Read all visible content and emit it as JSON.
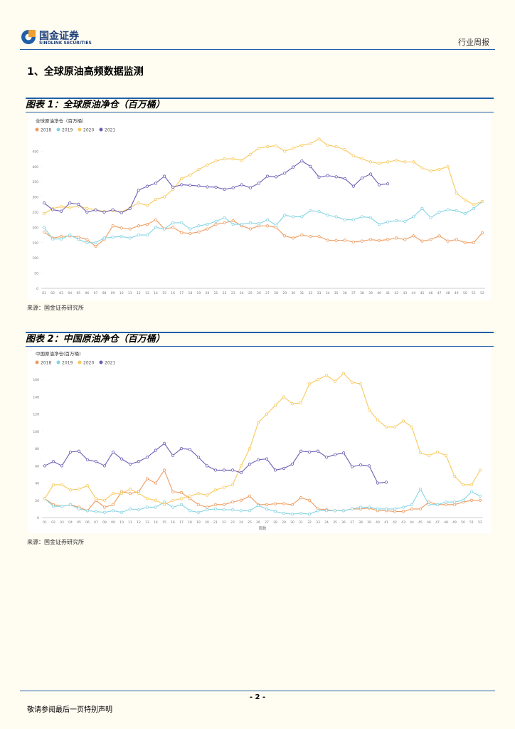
{
  "header": {
    "logo_cn": "国金证券",
    "logo_en": "SINOLINK SECURITIES",
    "report_type": "行业周报"
  },
  "section_title": "1、全球原油高频数据监测",
  "figures": [
    {
      "caption": "图表 1：全球原油净仓（百万桶）",
      "source": "来源：国金证券研究所"
    },
    {
      "caption": "图表 2：中国原油净仓（百万桶）",
      "source": "来源：国金证券研究所"
    }
  ],
  "chart_data": [
    {
      "type": "line",
      "title": "全球原油净仓（百万桶）",
      "categories": [
        "01",
        "02",
        "03",
        "04",
        "05",
        "06",
        "07",
        "08",
        "09",
        "10",
        "11",
        "12",
        "13",
        "14",
        "15",
        "16",
        "17",
        "18",
        "19",
        "20",
        "21",
        "22",
        "23",
        "24",
        "25",
        "26",
        "27",
        "28",
        "29",
        "30",
        "31",
        "32",
        "33",
        "34",
        "35",
        "36",
        "37",
        "38",
        "39",
        "40",
        "41",
        "42",
        "43",
        "44",
        "45",
        "46",
        "47",
        "48",
        "49",
        "50",
        "51",
        "52"
      ],
      "ylim": [
        0,
        500
      ],
      "yticks": [
        0,
        50,
        100,
        150,
        200,
        250,
        300,
        350,
        400,
        450
      ],
      "grid": false,
      "series": [
        {
          "name": "2018",
          "color": "#ee9a5c",
          "values": [
            185,
            165,
            170,
            172,
            168,
            160,
            138,
            160,
            205,
            198,
            195,
            205,
            210,
            225,
            195,
            200,
            183,
            180,
            185,
            195,
            210,
            215,
            222,
            205,
            195,
            205,
            205,
            200,
            172,
            165,
            175,
            170,
            170,
            158,
            157,
            158,
            152,
            155,
            160,
            157,
            160,
            165,
            160,
            172,
            155,
            160,
            172,
            155,
            160,
            150,
            150,
            182
          ]
        },
        {
          "name": "2019",
          "color": "#84d3e3",
          "values": [
            200,
            162,
            162,
            175,
            160,
            150,
            150,
            165,
            168,
            170,
            165,
            175,
            175,
            200,
            195,
            215,
            215,
            195,
            205,
            210,
            220,
            232,
            210,
            210,
            215,
            212,
            225,
            207,
            240,
            235,
            235,
            255,
            252,
            240,
            235,
            225,
            225,
            235,
            232,
            210,
            218,
            222,
            220,
            235,
            262,
            232,
            250,
            258,
            255,
            245,
            262,
            285
          ]
        },
        {
          "name": "2020",
          "color": "#f7c95c",
          "values": [
            245,
            262,
            268,
            265,
            270,
            262,
            258,
            252,
            255,
            250,
            265,
            280,
            272,
            292,
            300,
            325,
            360,
            372,
            390,
            405,
            418,
            425,
            425,
            420,
            440,
            460,
            465,
            468,
            450,
            460,
            470,
            475,
            490,
            470,
            465,
            455,
            435,
            425,
            415,
            410,
            415,
            420,
            415,
            415,
            395,
            385,
            390,
            400,
            312,
            290,
            275,
            285
          ]
        },
        {
          "name": "2021",
          "color": "#6a5db3",
          "values": [
            280,
            258,
            253,
            280,
            276,
            250,
            257,
            250,
            258,
            248,
            262,
            322,
            335,
            345,
            368,
            332,
            340,
            338,
            336,
            333,
            332,
            325,
            330,
            340,
            330,
            345,
            368,
            366,
            378,
            398,
            418,
            400,
            365,
            370,
            366,
            360,
            335,
            362,
            375,
            340,
            343,
            null,
            null,
            null,
            null,
            null,
            null,
            null,
            null,
            null,
            null,
            null
          ]
        }
      ]
    },
    {
      "type": "line",
      "title": "中国原油净仓(百万桶)",
      "xlabel": "周数",
      "categories": [
        "01",
        "02",
        "03",
        "04",
        "05",
        "06",
        "07",
        "08",
        "09",
        "10",
        "11",
        "12",
        "13",
        "14",
        "15",
        "16",
        "17",
        "18",
        "19",
        "20",
        "21",
        "22",
        "23",
        "24",
        "25",
        "26",
        "27",
        "28",
        "29",
        "30",
        "31",
        "32",
        "33",
        "34",
        "35",
        "36",
        "37",
        "38",
        "39",
        "40",
        "41",
        "42",
        "43",
        "44",
        "45",
        "46",
        "47",
        "48",
        "49",
        "50",
        "51",
        "52"
      ],
      "ylim": [
        0,
        180
      ],
      "yticks": [
        0,
        20,
        40,
        60,
        80,
        100,
        120,
        140,
        160
      ],
      "grid": false,
      "series": [
        {
          "name": "2018",
          "color": "#ee9a5c",
          "values": [
            22,
            15,
            13,
            15,
            12,
            8,
            20,
            12,
            15,
            30,
            28,
            30,
            45,
            40,
            55,
            30,
            29,
            22,
            15,
            12,
            15,
            15,
            18,
            20,
            25,
            15,
            15,
            16,
            16,
            15,
            23,
            20,
            10,
            9,
            8,
            8,
            10,
            10,
            11,
            8,
            8,
            7,
            7,
            10,
            10,
            18,
            15,
            15,
            15,
            18,
            20,
            20
          ]
        },
        {
          "name": "2019",
          "color": "#84d3e3",
          "values": [
            22,
            13,
            13,
            15,
            10,
            8,
            7,
            6,
            8,
            6,
            10,
            9,
            12,
            12,
            18,
            12,
            15,
            8,
            6,
            9,
            10,
            9,
            9,
            8,
            8,
            14,
            10,
            7,
            5,
            4,
            5,
            4,
            8,
            8,
            8,
            8,
            10,
            12,
            12,
            10,
            10,
            10,
            12,
            15,
            33,
            15,
            15,
            18,
            18,
            20,
            30,
            25
          ]
        },
        {
          "name": "2020",
          "color": "#f7c95c",
          "values": [
            22,
            38,
            38,
            32,
            33,
            37,
            22,
            20,
            28,
            28,
            33,
            28,
            22,
            20,
            15,
            20,
            22,
            25,
            28,
            26,
            32,
            35,
            38,
            60,
            80,
            110,
            120,
            130,
            140,
            132,
            133,
            155,
            160,
            165,
            158,
            167,
            157,
            155,
            125,
            113,
            105,
            105,
            112,
            105,
            75,
            72,
            76,
            72,
            48,
            38,
            38,
            55
          ]
        },
        {
          "name": "2021",
          "color": "#6a5db3",
          "values": [
            60,
            65,
            60,
            76,
            77,
            67,
            65,
            60,
            76,
            68,
            62,
            65,
            70,
            78,
            86,
            72,
            80,
            79,
            70,
            60,
            55,
            55,
            55,
            52,
            62,
            67,
            68,
            55,
            57,
            62,
            77,
            76,
            77,
            70,
            73,
            75,
            59,
            61,
            60,
            40,
            41,
            null,
            null,
            null,
            null,
            null,
            null,
            null,
            null,
            null,
            null,
            null
          ]
        }
      ]
    }
  ],
  "footer": {
    "page": "- 2 -",
    "disclaimer": "敬请参阅最后一页特别声明"
  }
}
